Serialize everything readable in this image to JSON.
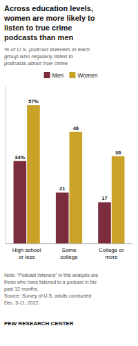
{
  "chart_data": {
    "type": "bar",
    "title": "Across education levels,\nwomen are more likely to\nlisten to true crime\npodcasts than men",
    "subtitle": "% of U.S. podcast listeners in each\ngroup who regularly listen to\npodcasts about true crime",
    "categories": [
      "High school\nor less",
      "Some\ncollege",
      "College or\nmore"
    ],
    "series": [
      {
        "name": "Men",
        "color": "#7b2d3e",
        "values": [
          34,
          21,
          17
        ],
        "value_labels": [
          "34%",
          "21",
          "17"
        ]
      },
      {
        "name": "Women",
        "color": "#c9a227",
        "values": [
          57,
          46,
          36
        ],
        "value_labels": [
          "57%",
          "46",
          "36"
        ]
      }
    ],
    "ylim": [
      0,
      65
    ],
    "grid": false,
    "data_labels": true,
    "tick_labels": "x",
    "legend": "top",
    "annotations": [
      "Note: “Podcast listeners” in this analysis are\nthose who have listened to a podcast in the\npast 12 months.\nSource: Survey of U.S. adults conducted\nDec. 5-11, 2022.",
      "PEW RESEARCH CENTER"
    ]
  }
}
